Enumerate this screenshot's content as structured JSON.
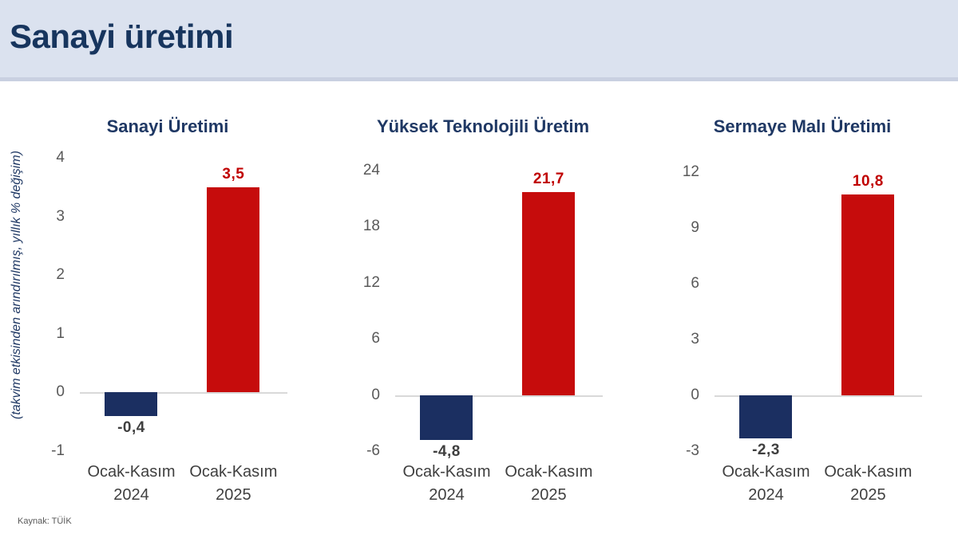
{
  "page": {
    "title": "Sanayi üretimi",
    "source": "Kaynak: TÜİK"
  },
  "colors": {
    "header_bg": "#dbe2ef",
    "title_navy": "#17355e",
    "chart_title_navy": "#1f3864",
    "bar_navy": "#1b2f61",
    "bar_red": "#c60c0c",
    "tick_gray": "#595959",
    "category_gray": "#3f3f3f",
    "zero_line_gray": "#d9d9d9"
  },
  "chart_data": [
    {
      "type": "bar",
      "title": "Sanayi Üretimi",
      "ylabel": "(takvim etkisinden arındırılmış, yıllık % değişim)",
      "categories": [
        [
          "Ocak-Kasım",
          "2024"
        ],
        [
          "Ocak-Kasım",
          "2025"
        ]
      ],
      "values": [
        -0.4,
        3.5
      ],
      "labels": [
        "-0,4",
        "3,5"
      ],
      "yticks": [
        4,
        3,
        2,
        1,
        0,
        -1
      ],
      "ylim": [
        -1,
        4
      ],
      "bar_colors": [
        "#1b2f61",
        "#c60c0c"
      ],
      "label_colors": [
        "#3f3f3f",
        "#c00000"
      ],
      "grid": false,
      "legend": "none"
    },
    {
      "type": "bar",
      "title": "Yüksek Teknolojili Üretim",
      "ylabel": "",
      "categories": [
        [
          "Ocak-Kasım",
          "2024"
        ],
        [
          "Ocak-Kasım",
          "2025"
        ]
      ],
      "values": [
        -4.8,
        21.7
      ],
      "labels": [
        "-4,8",
        "21,7"
      ],
      "yticks": [
        24,
        18,
        12,
        6,
        0,
        -6
      ],
      "ylim": [
        -6,
        24
      ],
      "bar_colors": [
        "#1b2f61",
        "#c60c0c"
      ],
      "label_colors": [
        "#3f3f3f",
        "#c00000"
      ],
      "grid": false,
      "legend": "none"
    },
    {
      "type": "bar",
      "title": "Sermaye Malı Üretimi",
      "ylabel": "",
      "categories": [
        [
          "Ocak-Kasım",
          "2024"
        ],
        [
          "Ocak-Kasım",
          "2025"
        ]
      ],
      "values": [
        -2.3,
        10.8
      ],
      "labels": [
        "-2,3",
        "10,8"
      ],
      "yticks": [
        12,
        9,
        6,
        3,
        0,
        -3
      ],
      "ylim": [
        -3,
        12
      ],
      "bar_colors": [
        "#1b2f61",
        "#c60c0c"
      ],
      "label_colors": [
        "#3f3f3f",
        "#c00000"
      ],
      "grid": false,
      "legend": "none"
    }
  ]
}
